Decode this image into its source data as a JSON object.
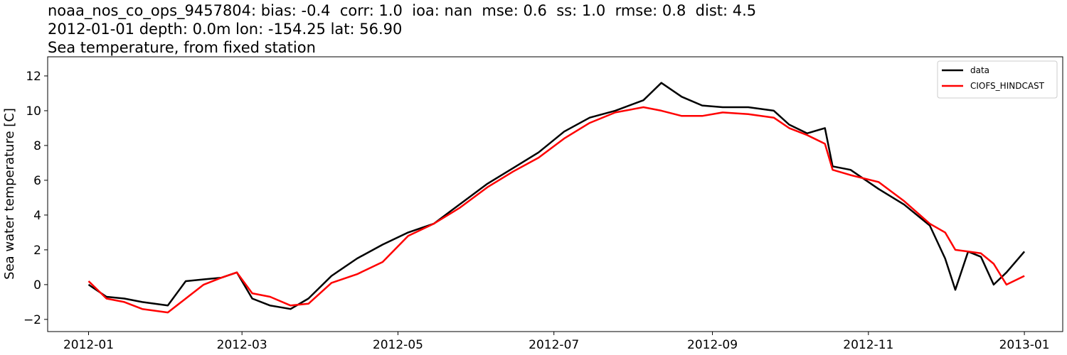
{
  "chart_data": {
    "type": "line",
    "title_lines": [
      "noaa_nos_co_ops_9457804: bias: -0.4  corr: 1.0  ioa: nan  mse: 0.6  ss: 1.0  rmse: 0.8  dist: 4.5",
      "2012-01-01 depth: 0.0m lon: -154.25 lat: 56.90",
      "Sea temperature, from fixed station"
    ],
    "xlabel": "",
    "ylabel": "Sea water temperature [C]",
    "xlim": [
      "2011-12-16",
      "2013-01-16"
    ],
    "ylim": [
      -2.7,
      13.1
    ],
    "x_ticks": [
      "2012-01",
      "2012-03",
      "2012-05",
      "2012-07",
      "2012-09",
      "2012-11",
      "2013-01"
    ],
    "y_ticks": [
      -2,
      0,
      2,
      4,
      6,
      8,
      10,
      12
    ],
    "legend_position": "top-right",
    "grid": false,
    "series": [
      {
        "name": "data",
        "color": "#000000",
        "x": [
          "2012-01-01",
          "2012-01-08",
          "2012-01-15",
          "2012-01-22",
          "2012-02-01",
          "2012-02-08",
          "2012-02-15",
          "2012-02-22",
          "2012-02-28",
          "2012-03-05",
          "2012-03-12",
          "2012-03-20",
          "2012-03-27",
          "2012-04-05",
          "2012-04-15",
          "2012-04-25",
          "2012-05-05",
          "2012-05-15",
          "2012-05-25",
          "2012-06-05",
          "2012-06-15",
          "2012-06-25",
          "2012-07-05",
          "2012-07-15",
          "2012-07-25",
          "2012-08-05",
          "2012-08-12",
          "2012-08-20",
          "2012-08-28",
          "2012-09-05",
          "2012-09-15",
          "2012-09-25",
          "2012-10-01",
          "2012-10-08",
          "2012-10-15",
          "2012-10-18",
          "2012-10-25",
          "2012-11-05",
          "2012-11-15",
          "2012-11-25",
          "2012-12-01",
          "2012-12-05",
          "2012-12-10",
          "2012-12-15",
          "2012-12-20",
          "2012-12-25",
          "2013-01-01"
        ],
        "y": [
          0.0,
          -0.7,
          -0.8,
          -1.0,
          -1.2,
          0.2,
          0.3,
          0.4,
          0.7,
          -0.8,
          -1.2,
          -1.4,
          -0.8,
          0.5,
          1.5,
          2.3,
          3.0,
          3.5,
          4.6,
          5.8,
          6.7,
          7.6,
          8.8,
          9.6,
          10.0,
          10.6,
          11.6,
          10.8,
          10.3,
          10.2,
          10.2,
          10.0,
          9.2,
          8.7,
          9.0,
          6.8,
          6.6,
          5.5,
          4.6,
          3.4,
          1.5,
          -0.3,
          1.9,
          1.6,
          0.0,
          0.7,
          1.9
        ]
      },
      {
        "name": "CIOFS_HINDCAST",
        "color": "#ff0000",
        "x": [
          "2012-01-01",
          "2012-01-08",
          "2012-01-15",
          "2012-01-22",
          "2012-02-01",
          "2012-02-08",
          "2012-02-15",
          "2012-02-22",
          "2012-02-28",
          "2012-03-05",
          "2012-03-12",
          "2012-03-20",
          "2012-03-27",
          "2012-04-05",
          "2012-04-15",
          "2012-04-25",
          "2012-05-05",
          "2012-05-15",
          "2012-05-25",
          "2012-06-05",
          "2012-06-15",
          "2012-06-25",
          "2012-07-05",
          "2012-07-15",
          "2012-07-25",
          "2012-08-05",
          "2012-08-12",
          "2012-08-20",
          "2012-08-28",
          "2012-09-05",
          "2012-09-15",
          "2012-09-25",
          "2012-10-01",
          "2012-10-08",
          "2012-10-15",
          "2012-10-18",
          "2012-10-25",
          "2012-11-05",
          "2012-11-15",
          "2012-11-25",
          "2012-12-01",
          "2012-12-05",
          "2012-12-10",
          "2012-12-15",
          "2012-12-20",
          "2012-12-25",
          "2013-01-01"
        ],
        "y": [
          0.2,
          -0.8,
          -1.0,
          -1.4,
          -1.6,
          -0.8,
          0.0,
          0.4,
          0.7,
          -0.5,
          -0.7,
          -1.2,
          -1.1,
          0.1,
          0.6,
          1.3,
          2.8,
          3.5,
          4.4,
          5.6,
          6.5,
          7.3,
          8.4,
          9.3,
          9.9,
          10.2,
          10.0,
          9.7,
          9.7,
          9.9,
          9.8,
          9.6,
          9.0,
          8.6,
          8.1,
          6.6,
          6.3,
          5.9,
          4.8,
          3.5,
          3.0,
          2.0,
          1.9,
          1.8,
          1.2,
          0.0,
          0.5
        ]
      }
    ]
  }
}
